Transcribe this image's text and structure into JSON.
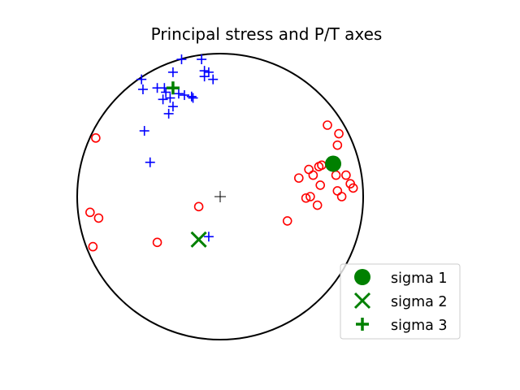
{
  "chart_data": {
    "type": "scatter",
    "title": "Principal stress and P/T axes",
    "projection": "stereonet",
    "xlim": [
      -1,
      1
    ],
    "ylim": [
      -1,
      1
    ],
    "grid": false,
    "legend": {
      "placement": "lower-right",
      "entries": [
        {
          "label": "sigma 1",
          "marker": "filled-circle",
          "color": "#008000"
        },
        {
          "label": "sigma 2",
          "marker": "x",
          "color": "#008000"
        },
        {
          "label": "sigma 3",
          "marker": "plus",
          "color": "#008000"
        }
      ]
    },
    "center_marker": {
      "x": 0,
      "y": 0,
      "marker": "plus",
      "color": "#000000"
    },
    "series": [
      {
        "marker": "open-circle",
        "color": "#ff0000",
        "points": [
          [
            -0.87,
            0.41
          ],
          [
            0.75,
            0.5
          ],
          [
            0.83,
            0.44
          ],
          [
            0.82,
            0.36
          ],
          [
            0.55,
            0.13
          ],
          [
            0.62,
            0.19
          ],
          [
            0.65,
            0.15
          ],
          [
            0.69,
            0.21
          ],
          [
            0.71,
            0.22
          ],
          [
            0.81,
            0.15
          ],
          [
            0.88,
            0.15
          ],
          [
            0.91,
            0.09
          ],
          [
            0.93,
            0.06
          ],
          [
            0.7,
            0.08
          ],
          [
            0.6,
            -0.01
          ],
          [
            0.63,
            0.0
          ],
          [
            0.68,
            -0.06
          ],
          [
            0.82,
            0.04
          ],
          [
            0.85,
            0.0
          ],
          [
            0.47,
            -0.17
          ],
          [
            -0.15,
            -0.07
          ],
          [
            -0.91,
            -0.11
          ],
          [
            -0.85,
            -0.15
          ],
          [
            -0.89,
            -0.35
          ],
          [
            -0.44,
            -0.32
          ]
        ]
      },
      {
        "marker": "plus",
        "color": "#0000ff",
        "points": [
          [
            -0.27,
            0.96
          ],
          [
            -0.13,
            0.96
          ],
          [
            -0.33,
            0.87
          ],
          [
            -0.11,
            0.88
          ],
          [
            -0.08,
            0.87
          ],
          [
            -0.11,
            0.84
          ],
          [
            -0.05,
            0.82
          ],
          [
            -0.55,
            0.82
          ],
          [
            -0.54,
            0.75
          ],
          [
            -0.44,
            0.76
          ],
          [
            -0.39,
            0.76
          ],
          [
            -0.38,
            0.73
          ],
          [
            -0.35,
            0.69
          ],
          [
            -0.29,
            0.72
          ],
          [
            -0.25,
            0.71
          ],
          [
            -0.2,
            0.7
          ],
          [
            -0.19,
            0.69
          ],
          [
            -0.4,
            0.68
          ],
          [
            -0.33,
            0.63
          ],
          [
            -0.36,
            0.58
          ],
          [
            -0.53,
            0.46
          ],
          [
            -0.49,
            0.24
          ],
          [
            -0.08,
            -0.28
          ]
        ]
      },
      {
        "name": "sigma 1",
        "marker": "filled-circle",
        "color": "#008000",
        "points": [
          [
            0.79,
            0.23
          ]
        ]
      },
      {
        "name": "sigma 2",
        "marker": "x",
        "color": "#008000",
        "points": [
          [
            -0.15,
            -0.3
          ]
        ]
      },
      {
        "name": "sigma 3",
        "marker": "plus",
        "color": "#008000",
        "points": [
          [
            -0.33,
            0.76
          ]
        ]
      }
    ]
  }
}
